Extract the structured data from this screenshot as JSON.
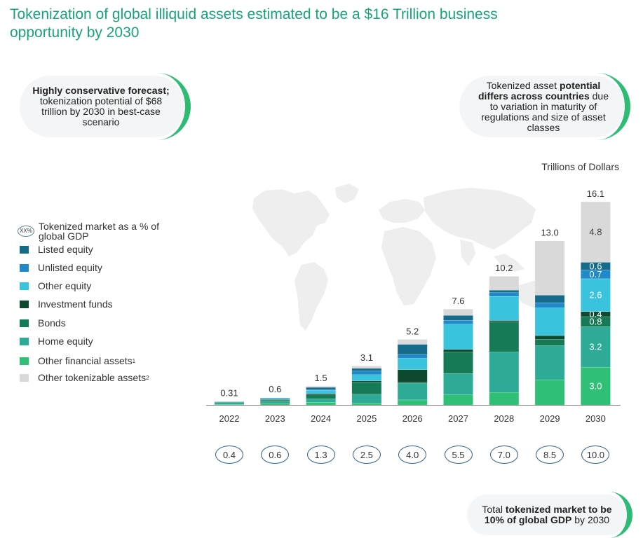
{
  "title": "Tokenization of global illiquid assets estimated to be a $16 Trillion business opportunity by 2030",
  "callouts": {
    "left": {
      "bold": "Highly conservative forecast;",
      "rest": "tokenization potential of $68 trillion by 2030 in best-case scenario"
    },
    "right": {
      "pre": "Tokenized asset",
      "bold": "potential differs across countries",
      "post": "due to variation in maturity of regulations and size of asset classes"
    },
    "bottom": {
      "pre": "Total",
      "bold": "tokenized market to be 10% of global GDP",
      "post": "by 2030"
    }
  },
  "legend": {
    "gdp_icon": "XX%",
    "gdp_label": "Tokenized market as a % of global GDP",
    "items": [
      {
        "label": "Listed equity",
        "sup": "",
        "color": "#146c8a"
      },
      {
        "label": "Unlisted equity",
        "sup": "",
        "color": "#1f89c9"
      },
      {
        "label": "Other equity",
        "sup": "",
        "color": "#3ac3dc"
      },
      {
        "label": "Investment funds",
        "sup": "",
        "color": "#0d4a30"
      },
      {
        "label": "Bonds",
        "sup": "",
        "color": "#157a55"
      },
      {
        "label": "Home equity",
        "sup": "",
        "color": "#2dab97"
      },
      {
        "label": "Other financial assets",
        "sup": "1",
        "color": "#2fbf75"
      },
      {
        "label": "Other tokenizable assets",
        "sup": "2",
        "color": "#d9d9d9"
      }
    ]
  },
  "chart_data": {
    "type": "bar",
    "stacked": true,
    "units_label": "Trillions of Dollars",
    "categories": [
      "2022",
      "2023",
      "2024",
      "2025",
      "2026",
      "2027",
      "2028",
      "2029",
      "2030"
    ],
    "totals": [
      "0.31",
      "0.6",
      "1.5",
      "3.1",
      "5.2",
      "7.6",
      "10.2",
      "13.0",
      "16.1"
    ],
    "series": [
      {
        "name": "Other financial assets",
        "color": "#2fbf75",
        "values": [
          0.05,
          0.1,
          0.2,
          0.15,
          0.4,
          0.8,
          1.0,
          2.0,
          3.0
        ],
        "labels": [
          "",
          "",
          "",
          "",
          "",
          "",
          "",
          "",
          "3.0"
        ]
      },
      {
        "name": "Home equity",
        "color": "#2dab97",
        "values": [
          0.15,
          0.2,
          0.3,
          0.7,
          1.3,
          1.7,
          3.2,
          2.7,
          3.2
        ],
        "labels": [
          "",
          "",
          "",
          "",
          "",
          "",
          "",
          "",
          "3.2"
        ]
      },
      {
        "name": "Bonds",
        "color": "#157a55",
        "values": [
          0.05,
          0.1,
          0.3,
          0.95,
          0.1,
          1.7,
          2.4,
          0.5,
          0.8
        ],
        "labels": [
          "",
          "",
          "",
          "",
          "",
          "",
          "",
          "",
          "0.8"
        ]
      },
      {
        "name": "Investment funds",
        "color": "#0d4a30",
        "values": [
          0.0,
          0.05,
          0.1,
          0.1,
          1.0,
          0.2,
          0.1,
          0.3,
          0.4
        ],
        "labels": [
          "",
          "",
          "",
          "",
          "",
          "",
          "",
          "",
          "0.4"
        ]
      },
      {
        "name": "Other equity",
        "color": "#3ac3dc",
        "values": [
          0.02,
          0.05,
          0.25,
          0.5,
          0.9,
          2.0,
          1.9,
          2.2,
          2.6
        ],
        "labels": [
          "",
          "",
          "",
          "",
          "",
          "",
          "",
          "",
          "2.6"
        ]
      },
      {
        "name": "Unlisted equity",
        "color": "#1f89c9",
        "values": [
          0.01,
          0.03,
          0.1,
          0.3,
          0.3,
          0.3,
          0.3,
          0.4,
          0.7
        ],
        "labels": [
          "",
          "",
          "",
          "",
          "",
          "",
          "",
          "",
          "0.7"
        ]
      },
      {
        "name": "Listed equity",
        "color": "#146c8a",
        "values": [
          0.01,
          0.04,
          0.15,
          0.2,
          0.8,
          0.4,
          0.2,
          0.6,
          0.6
        ],
        "labels": [
          "",
          "",
          "",
          "",
          "",
          "",
          "",
          "",
          "0.6"
        ]
      },
      {
        "name": "Other tokenizable assets",
        "color": "#d9d9d9",
        "values": [
          0.02,
          0.03,
          0.1,
          0.2,
          0.4,
          0.5,
          1.1,
          4.3,
          4.8
        ],
        "labels": [
          "",
          "",
          "",
          "",
          "",
          "",
          "",
          "",
          "4.8"
        ]
      }
    ],
    "gdp_percent": [
      "0.4",
      "0.6",
      "1.3",
      "2.5",
      "4.0",
      "5.5",
      "7.0",
      "8.5",
      "10.0"
    ]
  }
}
